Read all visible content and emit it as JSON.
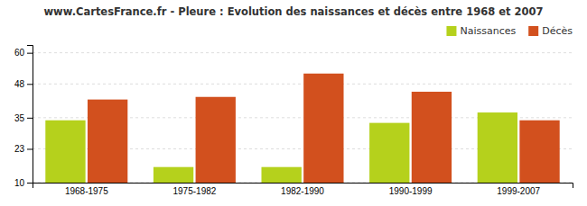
{
  "chart_data": {
    "type": "bar",
    "title": "www.CartesFrance.fr - Pleure : Evolution des naissances et décès entre 1968 et 2007",
    "categories": [
      "1968-1975",
      "1975-1982",
      "1982-1990",
      "1990-1999",
      "1999-2007"
    ],
    "series": [
      {
        "name": "Naissances",
        "color": "#b5d11c",
        "values": [
          34,
          16,
          16,
          33,
          37
        ]
      },
      {
        "name": "Décès",
        "color": "#d2501e",
        "values": [
          42,
          43,
          52,
          45,
          34
        ]
      }
    ],
    "ylim": [
      10,
      63
    ],
    "yticks": [
      10,
      23,
      35,
      48,
      60
    ],
    "grid": true,
    "legend": "upper right"
  }
}
